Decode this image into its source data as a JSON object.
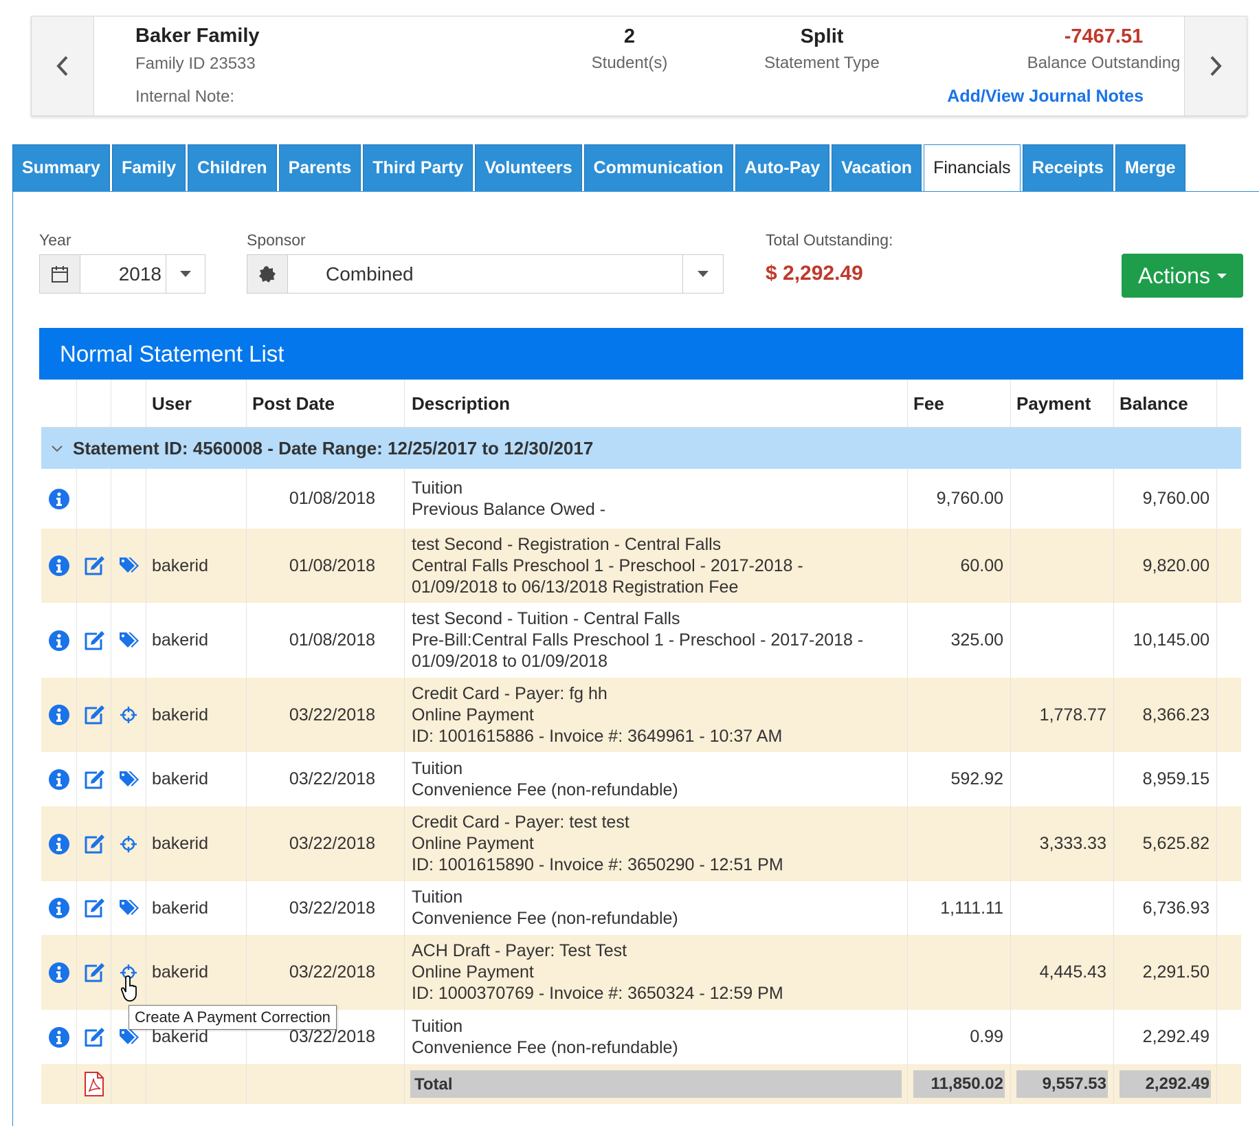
{
  "family": {
    "name": "Baker Family",
    "family_id": "Family ID 23533",
    "internal_note": "Internal Note:",
    "students_value": "2",
    "students_label": "Student(s)",
    "statement_type_value": "Split",
    "statement_type_label": "Statement Type",
    "balance_value": "-7467.51",
    "balance_label": "Balance Outstanding",
    "journal_link": "Add/View Journal Notes"
  },
  "tabs": [
    "Summary",
    "Family",
    "Children",
    "Parents",
    "Third Party",
    "Volunteers",
    "Communication",
    "Auto-Pay",
    "Vacation",
    "Financials",
    "Receipts",
    "Merge"
  ],
  "active_tab": "Financials",
  "filters": {
    "year_label": "Year",
    "year_value": "2018",
    "sponsor_label": "Sponsor",
    "sponsor_value": "Combined",
    "total_outstanding_label": "Total Outstanding:",
    "total_outstanding_value": "$ 2,292.49",
    "actions_label": "Actions"
  },
  "statement_list": {
    "title": "Normal Statement List",
    "columns": {
      "user": "User",
      "post_date": "Post Date",
      "description": "Description",
      "fee": "Fee",
      "payment": "Payment",
      "balance": "Balance"
    },
    "group_label": "Statement ID: 4560008 - Date Range: 12/25/2017 to 12/30/2017",
    "rows": [
      {
        "icons": [
          "info"
        ],
        "user": "",
        "date": "01/08/2018",
        "desc": [
          "Tuition",
          "Previous Balance Owed -"
        ],
        "fee": "9,760.00",
        "payment": "",
        "balance": "9,760.00",
        "shade": "white",
        "height": 87
      },
      {
        "icons": [
          "info",
          "edit",
          "tag"
        ],
        "user": "bakerid",
        "date": "01/08/2018",
        "desc": [
          "test Second - Registration - Central Falls",
          "Central Falls Preschool 1 - Preschool - 2017-2018 -",
          "01/09/2018 to 06/13/2018 Registration Fee"
        ],
        "fee": "60.00",
        "payment": "",
        "balance": "9,820.00",
        "shade": "beige",
        "height": 108
      },
      {
        "icons": [
          "info",
          "edit",
          "tag"
        ],
        "user": "bakerid",
        "date": "01/08/2018",
        "desc": [
          "test Second - Tuition - Central Falls",
          "Pre-Bill:Central Falls Preschool 1 - Preschool - 2017-2018 -",
          "01/09/2018 to 01/09/2018"
        ],
        "fee": "325.00",
        "payment": "",
        "balance": "10,145.00",
        "shade": "white",
        "height": 109
      },
      {
        "icons": [
          "info",
          "edit",
          "crosshair"
        ],
        "user": "bakerid",
        "date": "03/22/2018",
        "desc": [
          "Credit Card - Payer: fg hh",
          "Online Payment",
          "ID: 1001615886 - Invoice #: 3649961 - 10:37 AM"
        ],
        "fee": "",
        "payment": "1,778.77",
        "balance": "8,366.23",
        "shade": "beige",
        "height": 108
      },
      {
        "icons": [
          "info",
          "edit",
          "tag"
        ],
        "user": "bakerid",
        "date": "03/22/2018",
        "desc": [
          "Tuition",
          "Convenience Fee (non-refundable)"
        ],
        "fee": "592.92",
        "payment": "",
        "balance": "8,959.15",
        "shade": "white",
        "height": 79
      },
      {
        "icons": [
          "info",
          "edit",
          "crosshair"
        ],
        "user": "bakerid",
        "date": "03/22/2018",
        "desc": [
          "Credit Card - Payer: test test",
          "Online Payment",
          "ID: 1001615890 - Invoice #: 3650290 - 12:51 PM"
        ],
        "fee": "",
        "payment": "3,333.33",
        "balance": "5,625.82",
        "shade": "beige",
        "height": 109
      },
      {
        "icons": [
          "info",
          "edit",
          "tag"
        ],
        "user": "bakerid",
        "date": "03/22/2018",
        "desc": [
          "Tuition",
          "Convenience Fee (non-refundable)"
        ],
        "fee": "1,111.11",
        "payment": "",
        "balance": "6,736.93",
        "shade": "white",
        "height": 78
      },
      {
        "icons": [
          "info",
          "edit",
          "crosshair"
        ],
        "user": "bakerid",
        "date": "03/22/2018",
        "desc": [
          "ACH Draft - Payer: Test Test",
          "Online Payment",
          "ID: 1000370769 - Invoice #: 3650324 - 12:59 PM"
        ],
        "fee": "",
        "payment": "4,445.43",
        "balance": "2,291.50",
        "shade": "beige",
        "height": 109
      },
      {
        "icons": [
          "info",
          "edit",
          "tag"
        ],
        "user": "bakerid",
        "date": "03/22/2018",
        "desc": [
          "Tuition",
          "Convenience Fee (non-refundable)"
        ],
        "fee": "0.99",
        "payment": "",
        "balance": "2,292.49",
        "shade": "white",
        "height": 79
      }
    ],
    "total": {
      "label": "Total",
      "fee": "11,850.02",
      "payment": "9,557.53",
      "balance": "2,292.49"
    }
  },
  "tooltip": "Create A Payment Correction",
  "colors": {
    "tab_blue": "#2d8fd5",
    "list_header_blue": "#0477ec",
    "group_row": "#b6dcfa",
    "row_beige": "#faefd7",
    "actions_green": "#1e9e4a",
    "balance_red": "#c0392b",
    "link_blue": "#1a73e8",
    "icon_blue": "#1a73e8",
    "pdf_red": "#d32f2f"
  }
}
